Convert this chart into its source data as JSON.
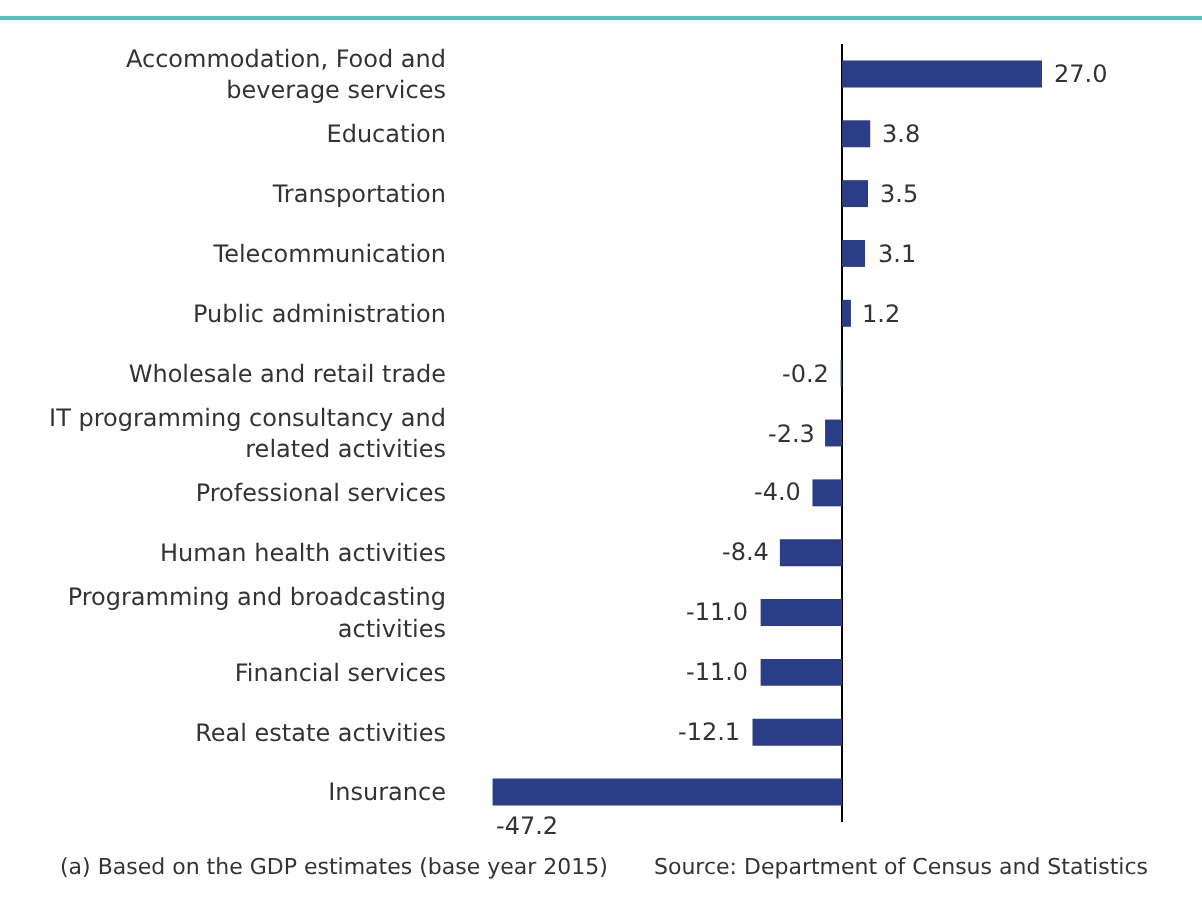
{
  "chart_data": {
    "type": "bar",
    "orientation": "horizontal",
    "categories": [
      "Accommodation, Food and beverage services",
      "Education",
      "Transportation",
      "Telecommunication",
      "Public administration",
      "Wholesale and retail trade",
      "IT programming consultancy and related activities",
      "Professional services",
      "Human health activities",
      "Programming and broadcasting activities",
      "Financial services",
      "Real estate activities",
      "Insurance"
    ],
    "values": [
      27.0,
      3.8,
      3.5,
      3.1,
      1.2,
      -0.2,
      -2.3,
      -4.0,
      -8.4,
      -11.0,
      -11.0,
      -12.1,
      -47.2
    ],
    "value_labels": [
      "27.0",
      "3.8",
      "3.5",
      "3.1",
      "1.2",
      "-0.2",
      "-2.3",
      "-4.0",
      "-8.4",
      "-11.0",
      "-11.0",
      "-12.1",
      "-47.2"
    ],
    "color": "#2b3d86",
    "tick_labels": "y",
    "grid": false,
    "legend": false,
    "annotations": [
      "(a) Based on the GDP estimates (base year 2015)",
      "Source: Department of Census and Statistics"
    ]
  }
}
